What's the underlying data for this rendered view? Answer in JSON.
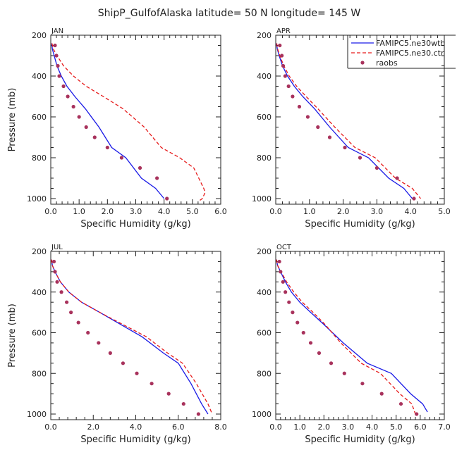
{
  "figure_title": "ShipP_GulfofAlaska  latitude= 50 N longitude= 145 W",
  "legend": {
    "items": [
      {
        "label": "FAMIPC5.ne30wth",
        "color": "#1a1ae6",
        "style": "solid"
      },
      {
        "label": "FAMIPC5.ne30.ctr",
        "color": "#e61a1a",
        "style": "dashed"
      },
      {
        "label": "raobs",
        "color": "#a8325c",
        "style": "dot"
      }
    ]
  },
  "chart_data": [
    {
      "type": "line",
      "month": "JAN",
      "title": "JAN",
      "xlabel": "Specific Humidity (g/kg)",
      "ylabel": "Pressure (mb)",
      "xlim": [
        0,
        6
      ],
      "xticks": [
        "0.0",
        "1.0",
        "2.0",
        "3.0",
        "4.0",
        "5.0",
        "6.0"
      ],
      "ylim": [
        200,
        1030
      ],
      "yticks": [
        "200",
        "400",
        "600",
        "800",
        "1000"
      ],
      "series": [
        {
          "name": "FAMIPC5.ne30wth",
          "x": [
            0.03,
            0.06,
            0.12,
            0.22,
            0.37,
            0.57,
            0.85,
            1.22,
            1.7,
            2.15,
            2.65,
            3.2,
            3.7,
            4.0
          ],
          "y": [
            240,
            270,
            300,
            350,
            400,
            450,
            500,
            560,
            650,
            750,
            800,
            900,
            950,
            1000
          ]
        },
        {
          "name": "FAMIPC5.ne30.ctr",
          "x": [
            0.04,
            0.1,
            0.22,
            0.45,
            0.8,
            1.25,
            1.85,
            2.55,
            3.3,
            3.9,
            4.55,
            5.05,
            5.4,
            5.45,
            5.35,
            5.25
          ],
          "y": [
            240,
            270,
            300,
            350,
            400,
            450,
            500,
            560,
            650,
            750,
            800,
            850,
            950,
            970,
            1000,
            1010
          ]
        },
        {
          "name": "raobs",
          "x": [
            0.15,
            0.2,
            0.25,
            0.3,
            0.45,
            0.6,
            0.8,
            1.0,
            1.25,
            1.55,
            2.0,
            2.5,
            3.15,
            3.75,
            4.1
          ],
          "y": [
            250,
            300,
            350,
            400,
            450,
            500,
            550,
            600,
            650,
            700,
            750,
            800,
            850,
            900,
            1000
          ]
        }
      ]
    },
    {
      "type": "line",
      "month": "APR",
      "title": "APR",
      "xlabel": "Specific Humidity (g/kg)",
      "ylabel": "Pressure (mb)",
      "xlim": [
        0,
        5
      ],
      "xticks": [
        "0.0",
        "1.0",
        "2.0",
        "3.0",
        "4.0",
        "5.0"
      ],
      "ylim": [
        200,
        1030
      ],
      "yticks": [
        "200",
        "400",
        "600",
        "800",
        "1000"
      ],
      "series": [
        {
          "name": "FAMIPC5.ne30wth",
          "x": [
            0.02,
            0.05,
            0.1,
            0.2,
            0.35,
            0.55,
            0.8,
            1.15,
            1.6,
            2.15,
            2.75,
            3.35,
            3.8,
            4.05
          ],
          "y": [
            240,
            270,
            300,
            350,
            400,
            450,
            500,
            560,
            650,
            750,
            800,
            900,
            950,
            1000
          ]
        },
        {
          "name": "FAMIPC5.ne30.ctr",
          "x": [
            0.03,
            0.06,
            0.12,
            0.24,
            0.4,
            0.62,
            0.9,
            1.25,
            1.75,
            2.35,
            2.95,
            3.55,
            4.05,
            4.3
          ],
          "y": [
            240,
            270,
            300,
            350,
            400,
            450,
            500,
            560,
            650,
            750,
            800,
            900,
            950,
            1000
          ]
        },
        {
          "name": "raobs",
          "x": [
            0.12,
            0.18,
            0.22,
            0.28,
            0.38,
            0.5,
            0.7,
            0.95,
            1.25,
            1.6,
            2.05,
            2.5,
            3.0,
            3.6,
            4.1
          ],
          "y": [
            250,
            300,
            350,
            400,
            450,
            500,
            550,
            600,
            650,
            700,
            750,
            800,
            850,
            900,
            1000
          ]
        }
      ]
    },
    {
      "type": "line",
      "month": "JUL",
      "title": "JUL",
      "xlabel": "Specific Humidity (g/kg)",
      "ylabel": "Pressure (mb)",
      "xlim": [
        0,
        8
      ],
      "xticks": [
        "0.0",
        "2.0",
        "4.0",
        "6.0",
        "8.0"
      ],
      "ylim": [
        200,
        1030
      ],
      "yticks": [
        "200",
        "400",
        "600",
        "800",
        "1000"
      ],
      "series": [
        {
          "name": "FAMIPC5.ne30wth",
          "x": [
            0.03,
            0.08,
            0.2,
            0.45,
            0.85,
            1.45,
            2.3,
            3.3,
            4.3,
            5.3,
            6.0,
            6.6,
            7.1,
            7.4
          ],
          "y": [
            240,
            270,
            300,
            350,
            400,
            450,
            500,
            560,
            620,
            700,
            750,
            850,
            950,
            1000
          ]
        },
        {
          "name": "FAMIPC5.ne30.ctr",
          "x": [
            0.03,
            0.08,
            0.2,
            0.45,
            0.85,
            1.45,
            2.3,
            3.4,
            4.5,
            5.5,
            6.2,
            6.85,
            7.4,
            7.6
          ],
          "y": [
            240,
            270,
            300,
            350,
            400,
            450,
            500,
            560,
            620,
            700,
            750,
            850,
            950,
            1000
          ]
        },
        {
          "name": "raobs",
          "x": [
            0.15,
            0.2,
            0.3,
            0.5,
            0.75,
            0.95,
            1.3,
            1.75,
            2.25,
            2.8,
            3.4,
            4.05,
            4.75,
            5.55,
            6.25,
            6.95
          ],
          "y": [
            250,
            300,
            350,
            400,
            450,
            500,
            550,
            600,
            650,
            700,
            750,
            800,
            850,
            900,
            950,
            1000
          ]
        }
      ]
    },
    {
      "type": "line",
      "month": "OCT",
      "title": "OCT",
      "xlabel": "Specific Humidity (g/kg)",
      "ylabel": "Pressure (mb)",
      "xlim": [
        0,
        7
      ],
      "xticks": [
        "0.0",
        "1.0",
        "2.0",
        "3.0",
        "4.0",
        "5.0",
        "6.0",
        "7.0"
      ],
      "ylim": [
        200,
        1030
      ],
      "yticks": [
        "200",
        "400",
        "600",
        "800",
        "1000"
      ],
      "series": [
        {
          "name": "FAMIPC5.ne30wth",
          "x": [
            0.03,
            0.08,
            0.2,
            0.4,
            0.65,
            1.0,
            1.45,
            2.0,
            2.8,
            3.8,
            4.8,
            5.6,
            6.1,
            6.3
          ],
          "y": [
            240,
            270,
            300,
            350,
            400,
            450,
            500,
            560,
            650,
            750,
            800,
            900,
            950,
            990
          ]
        },
        {
          "name": "FAMIPC5.ne30.ctr",
          "x": [
            0.03,
            0.08,
            0.22,
            0.45,
            0.75,
            1.1,
            1.55,
            2.05,
            2.7,
            3.55,
            4.35,
            5.15,
            5.65,
            5.8
          ],
          "y": [
            240,
            270,
            300,
            350,
            400,
            450,
            500,
            560,
            650,
            750,
            800,
            900,
            950,
            1000
          ]
        },
        {
          "name": "raobs",
          "x": [
            0.15,
            0.2,
            0.3,
            0.4,
            0.55,
            0.7,
            0.9,
            1.15,
            1.45,
            1.8,
            2.3,
            2.85,
            3.6,
            4.4,
            5.2,
            5.85
          ],
          "y": [
            250,
            300,
            350,
            400,
            450,
            500,
            550,
            600,
            650,
            700,
            750,
            800,
            850,
            900,
            950,
            1000
          ]
        }
      ]
    }
  ]
}
